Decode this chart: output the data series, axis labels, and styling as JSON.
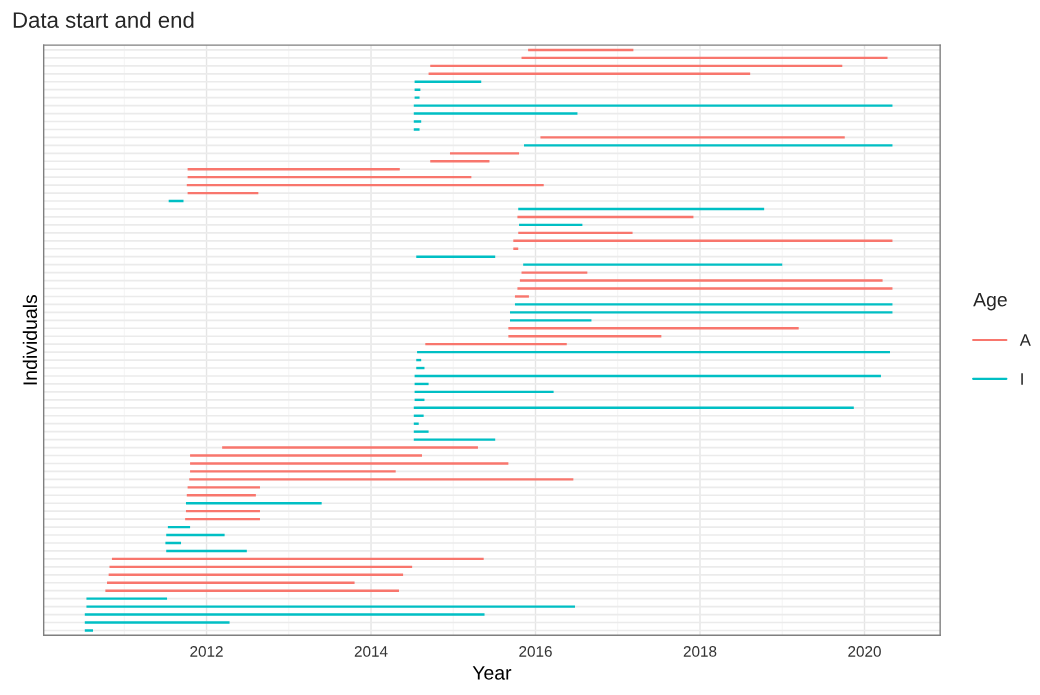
{
  "chart_data": {
    "type": "bar",
    "orientation": "horizontal",
    "title": "Data start and end",
    "xlabel": "Year",
    "ylabel": "Individuals",
    "legend_title": "Age",
    "legend": "right",
    "grid": true,
    "tick_labels": "x",
    "xlim": [
      2010.02,
      2020.92
    ],
    "xticks": [
      2012,
      2014,
      2016,
      2018,
      2020
    ],
    "categories": [
      null,
      null,
      null,
      null,
      null,
      null,
      null,
      null,
      null,
      null,
      null,
      null,
      null,
      null,
      null,
      null,
      null,
      null,
      null,
      null,
      null,
      null,
      null,
      null,
      null,
      null,
      null,
      null,
      null,
      null,
      null,
      null,
      null,
      null,
      null,
      null,
      null,
      null,
      null,
      null,
      null,
      null,
      null,
      null,
      null,
      null,
      null,
      null,
      null,
      null,
      null,
      null,
      null,
      null,
      null,
      null,
      null,
      null,
      null,
      null,
      null,
      null,
      null,
      null,
      null,
      null,
      null,
      null,
      null,
      null,
      null,
      null,
      null,
      null
    ],
    "series": [
      {
        "name": "A",
        "color": "#f8766d",
        "values": [
          1.28,
          4.45,
          5.01,
          3.91,
          null,
          null,
          null,
          null,
          null,
          null,
          null,
          3.7,
          null,
          0.84,
          0.72,
          2.58,
          3.45,
          4.34,
          0.86,
          null,
          null,
          2.14,
          null,
          1.39,
          4.61,
          0.06,
          null,
          null,
          0.8,
          4.41,
          4.56,
          0.17,
          null,
          null,
          null,
          3.53,
          1.86,
          1.72,
          null,
          null,
          null,
          null,
          null,
          null,
          null,
          null,
          null,
          null,
          null,
          null,
          3.11,
          2.82,
          3.87,
          2.5,
          4.67,
          0.88,
          0.84,
          null,
          0.9,
          0.91,
          null,
          null,
          null,
          null,
          4.52,
          3.68,
          3.58,
          3.01,
          3.57,
          null,
          null,
          null,
          null,
          null
        ],
        "base": [
          2015.91,
          2015.83,
          2014.72,
          2014.7,
          null,
          null,
          null,
          null,
          null,
          null,
          null,
          2016.06,
          null,
          2014.96,
          2014.72,
          2011.77,
          2011.77,
          2011.76,
          2011.77,
          null,
          null,
          2015.78,
          null,
          2015.79,
          2015.73,
          2015.73,
          null,
          null,
          2015.83,
          2015.81,
          2015.78,
          2015.75,
          null,
          null,
          null,
          2015.67,
          2015.67,
          2014.66,
          null,
          null,
          null,
          null,
          null,
          null,
          null,
          null,
          null,
          null,
          null,
          null,
          2012.19,
          2011.8,
          2011.8,
          2011.8,
          2011.79,
          2011.77,
          2011.76,
          null,
          2011.75,
          2011.74,
          null,
          null,
          null,
          null,
          2010.85,
          2010.82,
          2010.81,
          2010.79,
          2010.77,
          null,
          null,
          null,
          null,
          null
        ]
      },
      {
        "name": "I",
        "color": "#00bfc4",
        "values": [
          null,
          null,
          null,
          null,
          0.81,
          0.07,
          0.06,
          5.82,
          1.99,
          0.09,
          0.07,
          null,
          4.48,
          null,
          null,
          null,
          null,
          null,
          null,
          0.18,
          2.99,
          null,
          0.77,
          null,
          null,
          null,
          0.96,
          3.15,
          null,
          null,
          null,
          null,
          4.59,
          4.65,
          0.99,
          null,
          null,
          null,
          5.75,
          0.06,
          0.1,
          5.67,
          0.17,
          1.69,
          0.12,
          5.35,
          0.12,
          0.06,
          0.18,
          0.99,
          null,
          null,
          null,
          null,
          null,
          null,
          null,
          1.65,
          null,
          null,
          0.27,
          0.71,
          0.19,
          0.98,
          null,
          null,
          null,
          null,
          null,
          0.98,
          5.94,
          4.86,
          1.76,
          0.1
        ],
        "base": [
          null,
          null,
          null,
          null,
          2014.53,
          2014.53,
          2014.53,
          2014.52,
          2014.52,
          2014.52,
          2014.52,
          null,
          2015.86,
          null,
          null,
          null,
          null,
          null,
          null,
          2011.54,
          2015.79,
          null,
          2015.8,
          null,
          null,
          null,
          2014.55,
          2015.85,
          null,
          null,
          null,
          null,
          2015.75,
          2015.69,
          2015.69,
          null,
          null,
          null,
          2014.56,
          2014.55,
          2014.55,
          2014.53,
          2014.53,
          2014.53,
          2014.53,
          2014.52,
          2014.52,
          2014.52,
          2014.52,
          2014.52,
          null,
          null,
          null,
          null,
          null,
          null,
          null,
          2011.75,
          null,
          null,
          2011.53,
          2011.51,
          2011.5,
          2011.51,
          null,
          null,
          null,
          null,
          null,
          2010.54,
          2010.54,
          2010.52,
          2010.52,
          2010.52
        ]
      }
    ]
  }
}
